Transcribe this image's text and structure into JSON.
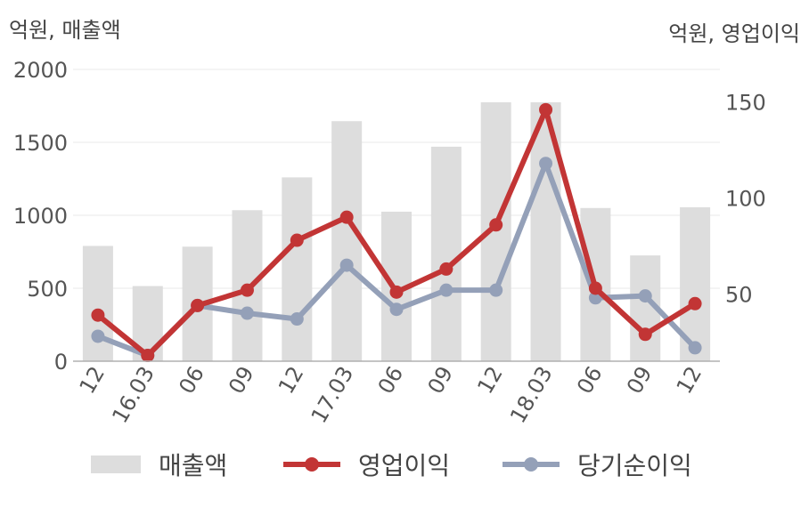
{
  "chart_data": {
    "type": "bar",
    "categories": [
      "12",
      "16.03",
      "06",
      "09",
      "12",
      "17.03",
      "06",
      "09",
      "12",
      "18.03",
      "06",
      "09",
      "12"
    ],
    "left_axis_unit": "억원, 매출액",
    "right_axis_unit": "억원, 영업이익",
    "yticks_left": [
      "0",
      "500",
      "1000",
      "1500",
      "2000"
    ],
    "yticks_right": [
      "50",
      "100",
      "150"
    ],
    "ylim_left": [
      0,
      2000
    ],
    "ylim_right": [
      15,
      167
    ],
    "series": [
      {
        "name": "매출액",
        "kind": "bar",
        "axis": "left",
        "color": "#dddddd",
        "values": [
          790,
          515,
          785,
          1035,
          1260,
          1645,
          1025,
          1470,
          1775,
          1775,
          1050,
          725,
          1055
        ]
      },
      {
        "name": "영업이익",
        "kind": "line",
        "axis": "right",
        "color": "#c23535",
        "values": [
          39,
          18,
          44,
          52,
          78,
          90,
          51,
          63,
          86,
          146,
          53,
          29,
          45
        ]
      },
      {
        "name": "당기순이익",
        "kind": "line",
        "axis": "right",
        "color": "#94a0b8",
        "values": [
          28,
          18,
          44,
          40,
          37,
          65,
          42,
          52,
          52,
          118,
          48,
          49,
          22
        ]
      }
    ],
    "grid": true
  }
}
